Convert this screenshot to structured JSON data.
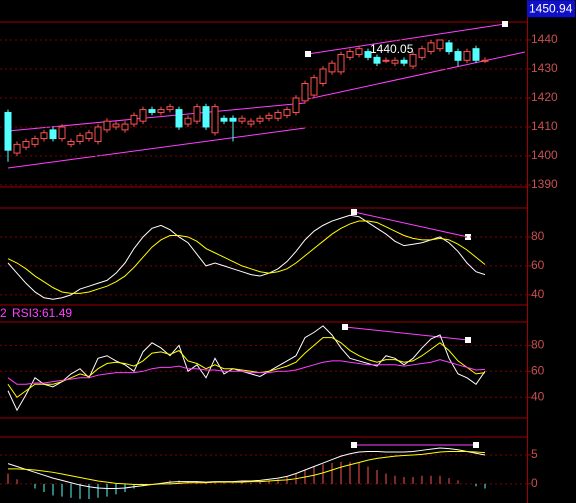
{
  "chart_data": [
    {
      "type": "candlestick",
      "open": [
        1415,
        1401,
        1403,
        1404,
        1406,
        1409,
        1406,
        1404,
        1405,
        1406,
        1405,
        1409,
        1410,
        1409,
        1411,
        1412,
        1416,
        1415,
        1416,
        1416,
        1411,
        1412,
        1417,
        1408,
        1413,
        1413,
        1412,
        1411,
        1412,
        1413,
        1413,
        1414,
        1415,
        1419,
        1421,
        1425,
        1429,
        1429,
        1434,
        1435,
        1436,
        1434,
        1433,
        1432,
        1433,
        1431,
        1434,
        1436,
        1437,
        1439,
        1436,
        1433,
        1437,
        1433
      ],
      "high": [
        1416,
        1405,
        1406,
        1407,
        1409,
        1410,
        1411,
        1406,
        1408,
        1409,
        1411,
        1413,
        1412,
        1412,
        1415,
        1417,
        1417,
        1417,
        1418,
        1417,
        1414,
        1418,
        1418,
        1418,
        1414,
        1414,
        1414,
        1413,
        1414,
        1415,
        1416,
        1417,
        1421,
        1426,
        1428,
        1431,
        1433,
        1436,
        1437,
        1438,
        1437,
        1435,
        1434,
        1434,
        1434,
        1436,
        1438,
        1440,
        1440.05,
        1440,
        1437,
        1437,
        1438,
        1434
      ],
      "low": [
        1398,
        1400,
        1402,
        1403,
        1405,
        1405,
        1405,
        1403,
        1404,
        1405,
        1404,
        1408,
        1409,
        1408,
        1410,
        1411,
        1414,
        1414,
        1415,
        1409,
        1410,
        1411,
        1409,
        1407,
        1411,
        1405,
        1411,
        1410,
        1411,
        1412,
        1412,
        1413,
        1414,
        1418,
        1420,
        1424,
        1428,
        1428,
        1433,
        1434,
        1433,
        1431,
        1432,
        1431,
        1431,
        1430,
        1433,
        1435,
        1436,
        1435,
        1431,
        1432,
        1432,
        1432
      ],
      "close": [
        1402,
        1404,
        1405,
        1406,
        1408,
        1406,
        1410,
        1405,
        1407,
        1408,
        1410,
        1412,
        1411,
        1411,
        1414,
        1416,
        1415,
        1416,
        1417,
        1410,
        1413,
        1417,
        1410,
        1417,
        1412,
        1412,
        1413,
        1412,
        1413,
        1414,
        1415,
        1416,
        1420,
        1425,
        1427,
        1430,
        1432,
        1435,
        1436,
        1437,
        1434,
        1432,
        1433,
        1433,
        1432,
        1435,
        1437,
        1439,
        1440,
        1436,
        1433,
        1436,
        1433,
        1433
      ],
      "up_color": "#ff5050",
      "down_color": "#54ffff",
      "ylim": [
        1389.3,
        1446.2
      ],
      "yticks": [
        1390,
        1400,
        1410,
        1420,
        1430,
        1440
      ],
      "grid": true,
      "price_marker": 1450.94,
      "annotation": 1440.05
    },
    {
      "type": "line",
      "ylim": [
        33,
        100
      ],
      "yticks": [
        40,
        60,
        80
      ],
      "grid": true,
      "series": [
        {
          "color": "#ffffff",
          "values": [
            62,
            55,
            48,
            42,
            38,
            37,
            38,
            40,
            44,
            46,
            48,
            50,
            55,
            62,
            72,
            80,
            86,
            88,
            85,
            80,
            76,
            68,
            60,
            62,
            60,
            58,
            56,
            54,
            53,
            55,
            58,
            63,
            70,
            78,
            84,
            88,
            91,
            93,
            95,
            94,
            90,
            86,
            82,
            77,
            74,
            75,
            76,
            78,
            80,
            76,
            70,
            62,
            56,
            54
          ]
        },
        {
          "color": "#ffff00",
          "values": [
            65,
            62,
            58,
            53,
            49,
            45,
            42,
            41,
            41,
            42,
            44,
            46,
            49,
            53,
            59,
            66,
            73,
            78,
            81,
            81,
            80,
            77,
            72,
            69,
            66,
            63,
            60,
            58,
            56,
            55,
            56,
            58,
            62,
            67,
            72,
            77,
            82,
            86,
            89,
            91,
            91,
            90,
            87,
            84,
            81,
            79,
            78,
            78,
            79,
            78,
            75,
            71,
            66,
            61
          ]
        }
      ]
    },
    {
      "type": "line",
      "ylim": [
        24,
        98
      ],
      "yticks": [
        40,
        60,
        80
      ],
      "grid": true,
      "legend_fragment": "2",
      "legend_text": "RSI3:61.49",
      "series": [
        {
          "color": "#ffffff",
          "values": [
            45,
            30,
            42,
            55,
            50,
            48,
            52,
            58,
            62,
            55,
            70,
            72,
            68,
            65,
            60,
            75,
            82,
            78,
            72,
            80,
            60,
            65,
            55,
            70,
            58,
            62,
            60,
            58,
            56,
            60,
            64,
            68,
            72,
            86,
            90,
            95,
            88,
            78,
            70,
            68,
            66,
            64,
            72,
            70,
            65,
            70,
            78,
            85,
            88,
            70,
            58,
            55,
            50,
            60
          ]
        },
        {
          "color": "#ffff00",
          "values": [
            50,
            40,
            45,
            50,
            50,
            50,
            52,
            55,
            58,
            56,
            62,
            66,
            67,
            66,
            64,
            68,
            74,
            75,
            73,
            76,
            68,
            66,
            62,
            65,
            62,
            62,
            61,
            60,
            59,
            60,
            62,
            64,
            67,
            74,
            80,
            86,
            86,
            82,
            76,
            72,
            69,
            67,
            69,
            69,
            67,
            68,
            72,
            77,
            82,
            76,
            68,
            63,
            58,
            59
          ]
        },
        {
          "color": "#ff40ff",
          "values": [
            55,
            50,
            50,
            51,
            51,
            52,
            53,
            54,
            55,
            55,
            57,
            58,
            59,
            59,
            59,
            60,
            62,
            63,
            63,
            64,
            62,
            62,
            61,
            61,
            60,
            60,
            60,
            59,
            59,
            59,
            60,
            60,
            61,
            63,
            65,
            67,
            68,
            68,
            67,
            66,
            65,
            65,
            65,
            65,
            64,
            65,
            66,
            67,
            69,
            67,
            65,
            63,
            61,
            61.49
          ]
        }
      ]
    },
    {
      "type": "line",
      "ylim": [
        -3.3,
        8.1
      ],
      "yticks": [
        0,
        5
      ],
      "grid": true,
      "series": [
        {
          "type": "bar",
          "color": "#ff5050",
          "negative_color": "#54ffff",
          "values": [
            1.8,
            0.8,
            0,
            -0.8,
            -1.4,
            -2,
            -2.2,
            -2.4,
            -2.6,
            -2.6,
            -2.4,
            -2.2,
            -1.8,
            -1.4,
            -0.8,
            -0.4,
            0,
            0.2,
            0.6,
            0.6,
            0.4,
            0.4,
            0.2,
            0.2,
            0.2,
            0.2,
            0.4,
            0.2,
            0.4,
            0.6,
            0.8,
            1.2,
            1.8,
            2.4,
            3,
            3.4,
            3.6,
            3.8,
            3.8,
            3.6,
            3,
            2.4,
            1.8,
            1.4,
            1.2,
            1.2,
            1.4,
            1.4,
            1.4,
            1,
            0.6,
            0,
            -0.4,
            -0.8
          ]
        },
        {
          "color": "#ffffff",
          "values": [
            3.5,
            3.0,
            2.5,
            2.0,
            1.5,
            1.0,
            0.6,
            0.2,
            -0.2,
            -0.5,
            -0.7,
            -0.8,
            -0.8,
            -0.7,
            -0.5,
            -0.3,
            -0.1,
            0.1,
            0.3,
            0.4,
            0.4,
            0.4,
            0.3,
            0.4,
            0.4,
            0.4,
            0.5,
            0.5,
            0.6,
            0.8,
            1.0,
            1.3,
            1.8,
            2.4,
            3.0,
            3.6,
            4.2,
            4.8,
            5.2,
            5.5,
            5.6,
            5.6,
            5.5,
            5.5,
            5.5,
            5.6,
            5.8,
            6.0,
            6.2,
            6.1,
            5.9,
            5.6,
            5.3,
            5.0
          ]
        },
        {
          "color": "#ffff00",
          "values": [
            2.6,
            2.6,
            2.5,
            2.4,
            2.2,
            2.0,
            1.7,
            1.4,
            1.1,
            0.8,
            0.5,
            0.3,
            0.1,
            0.0,
            -0.1,
            -0.1,
            -0.1,
            0.0,
            0.0,
            0.1,
            0.2,
            0.2,
            0.2,
            0.3,
            0.3,
            0.3,
            0.3,
            0.4,
            0.4,
            0.5,
            0.6,
            0.7,
            0.9,
            1.2,
            1.5,
            1.9,
            2.4,
            2.9,
            3.3,
            3.7,
            4.1,
            4.4,
            4.6,
            4.8,
            4.9,
            5.0,
            5.1,
            5.3,
            5.5,
            5.6,
            5.6,
            5.6,
            5.5,
            5.4
          ]
        }
      ]
    }
  ]
}
